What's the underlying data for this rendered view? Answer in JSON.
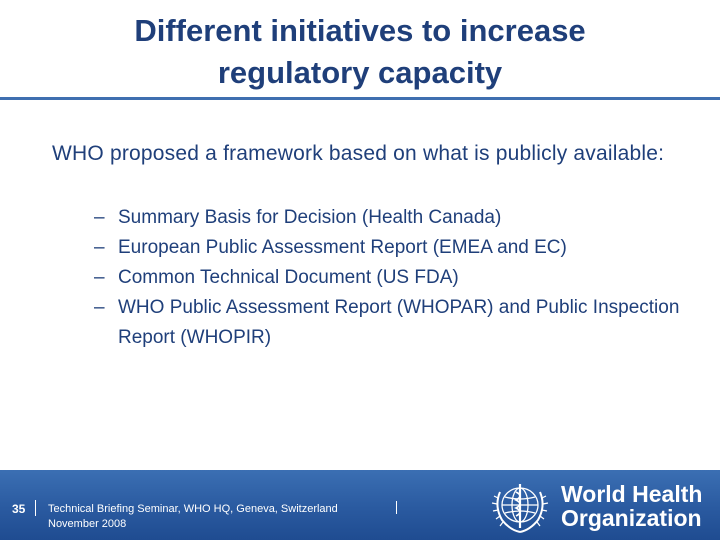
{
  "slide": {
    "title_line1": "Different initiatives to increase",
    "title_line2": "regulatory capacity",
    "intro": "WHO proposed a framework based on what is publicly available:",
    "bullet_marker": "–",
    "bullets": [
      "Summary Basis for Decision (Health Canada)",
      "European Public Assessment Report (EMEA and EC)",
      "Common Technical Document (US FDA)",
      "WHO Public Assessment Report (WHOPAR) and Public Inspection Report (WHOPIR)"
    ]
  },
  "footer": {
    "page_number": "35",
    "event_line1": "Technical Briefing Seminar, WHO HQ, Geneva, Switzerland",
    "event_line2": "November 2008",
    "org_line1": "World Health",
    "org_line2": "Organization"
  },
  "colors": {
    "text_blue": "#1f3f7a",
    "rule_blue": "#3f6fb0",
    "footer_blue": "#2a5aa0"
  },
  "icons": {
    "logo": "who-emblem-icon"
  }
}
